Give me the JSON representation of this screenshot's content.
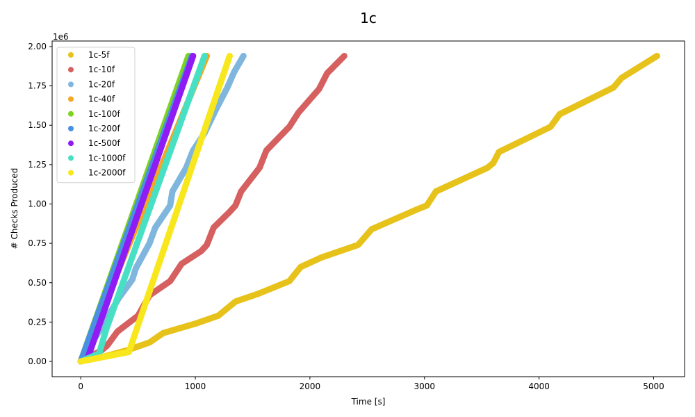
{
  "chart_data": {
    "type": "scatter",
    "title": "1c",
    "xlabel": "Time [s]",
    "ylabel": "# Checks Produced",
    "y_offset_label": "1e6",
    "xlim": [
      -250,
      5270
    ],
    "ylim": [
      -0.097,
      2.035
    ],
    "x_ticks": [
      0,
      1000,
      2000,
      3000,
      4000,
      5000
    ],
    "x_tick_labels": [
      "0",
      "1000",
      "2000",
      "3000",
      "4000",
      "5000"
    ],
    "y_ticks": [
      0.0,
      0.25,
      0.5,
      0.75,
      1.0,
      1.25,
      1.5,
      1.75,
      2.0
    ],
    "y_tick_labels": [
      "0.00",
      "0.25",
      "0.50",
      "0.75",
      "1.00",
      "1.25",
      "1.50",
      "1.75",
      "2.00"
    ],
    "grid": false,
    "legend_position": "top-left",
    "series": [
      {
        "name": "1c-5f",
        "color": "#e6c21a",
        "points": [
          [
            0,
            0
          ],
          [
            200,
            0.03
          ],
          [
            400,
            0.07
          ],
          [
            600,
            0.12
          ],
          [
            720,
            0.18
          ],
          [
            1000,
            0.24
          ],
          [
            1200,
            0.29
          ],
          [
            1300,
            0.35
          ],
          [
            1350,
            0.38
          ],
          [
            1550,
            0.43
          ],
          [
            1820,
            0.51
          ],
          [
            1920,
            0.6
          ],
          [
            2100,
            0.66
          ],
          [
            2420,
            0.74
          ],
          [
            2540,
            0.84
          ],
          [
            2950,
            0.97
          ],
          [
            3020,
            0.99
          ],
          [
            3100,
            1.08
          ],
          [
            3550,
            1.23
          ],
          [
            3600,
            1.26
          ],
          [
            3650,
            1.33
          ],
          [
            4100,
            1.49
          ],
          [
            4180,
            1.57
          ],
          [
            4650,
            1.74
          ],
          [
            4720,
            1.8
          ],
          [
            5030,
            1.94
          ]
        ]
      },
      {
        "name": "1c-10f",
        "color": "#d65f5f",
        "points": [
          [
            0,
            0
          ],
          [
            180,
            0.07
          ],
          [
            230,
            0.1
          ],
          [
            320,
            0.19
          ],
          [
            500,
            0.29
          ],
          [
            600,
            0.42
          ],
          [
            780,
            0.51
          ],
          [
            880,
            0.62
          ],
          [
            1050,
            0.7
          ],
          [
            1100,
            0.74
          ],
          [
            1160,
            0.85
          ],
          [
            1300,
            0.95
          ],
          [
            1350,
            0.99
          ],
          [
            1400,
            1.08
          ],
          [
            1560,
            1.23
          ],
          [
            1620,
            1.34
          ],
          [
            1820,
            1.49
          ],
          [
            1900,
            1.58
          ],
          [
            2080,
            1.73
          ],
          [
            2150,
            1.83
          ],
          [
            2300,
            1.94
          ]
        ]
      },
      {
        "name": "1c-20f",
        "color": "#7eb6dd",
        "points": [
          [
            0,
            0
          ],
          [
            200,
            0.24
          ],
          [
            250,
            0.3
          ],
          [
            330,
            0.4
          ],
          [
            450,
            0.52
          ],
          [
            480,
            0.59
          ],
          [
            600,
            0.75
          ],
          [
            650,
            0.85
          ],
          [
            780,
            0.99
          ],
          [
            800,
            1.08
          ],
          [
            920,
            1.23
          ],
          [
            980,
            1.34
          ],
          [
            1080,
            1.45
          ],
          [
            1180,
            1.6
          ],
          [
            1280,
            1.74
          ],
          [
            1340,
            1.84
          ],
          [
            1420,
            1.94
          ]
        ]
      },
      {
        "name": "1c-40f",
        "color": "#f5a623",
        "points": [
          [
            0,
            0
          ],
          [
            1100,
            1.94
          ]
        ]
      },
      {
        "name": "1c-100f",
        "color": "#7ed321",
        "points": [
          [
            0,
            0
          ],
          [
            940,
            1.94
          ]
        ]
      },
      {
        "name": "1c-200f",
        "color": "#4a90e2",
        "points": [
          [
            0,
            0
          ],
          [
            970,
            1.94
          ]
        ]
      },
      {
        "name": "1c-500f",
        "color": "#8f1bf5",
        "points": [
          [
            0,
            0
          ],
          [
            60,
            0.02
          ],
          [
            980,
            1.94
          ]
        ]
      },
      {
        "name": "1c-1000f",
        "color": "#48e0c4",
        "points": [
          [
            0,
            0
          ],
          [
            160,
            0.05
          ],
          [
            220,
            0.2
          ],
          [
            1080,
            1.94
          ]
        ]
      },
      {
        "name": "1c-2000f",
        "color": "#f8e71c",
        "points": [
          [
            0,
            0
          ],
          [
            420,
            0.06
          ],
          [
            1300,
            1.94
          ]
        ]
      }
    ]
  }
}
